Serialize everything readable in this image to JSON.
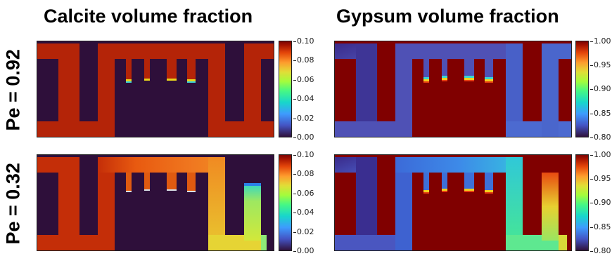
{
  "titles": {
    "calcite": "Calcite volume fraction",
    "gypsum": "Gypsum volume fraction"
  },
  "rows": [
    {
      "label": "Pe = 0.92"
    },
    {
      "label": "Pe = 0.32"
    }
  ],
  "colorbars": {
    "calcite": {
      "ticks": [
        "0.10",
        "0.08",
        "0.06",
        "0.04",
        "0.02",
        "0.00"
      ],
      "range": [
        0.0,
        0.1
      ]
    },
    "gypsum": {
      "ticks": [
        "1.00",
        "0.95",
        "0.90",
        "0.85",
        "0.80"
      ],
      "range": [
        0.8,
        1.0
      ]
    }
  },
  "colormap": "turbo",
  "colors": {
    "solid": "#2e0f3a",
    "calcite_full": "#b42408",
    "gypsum_full": "#800000",
    "gypsum_channel_pe092": "#4f51b5",
    "gypsum_channel_pe032": "#3fa0e6"
  }
}
